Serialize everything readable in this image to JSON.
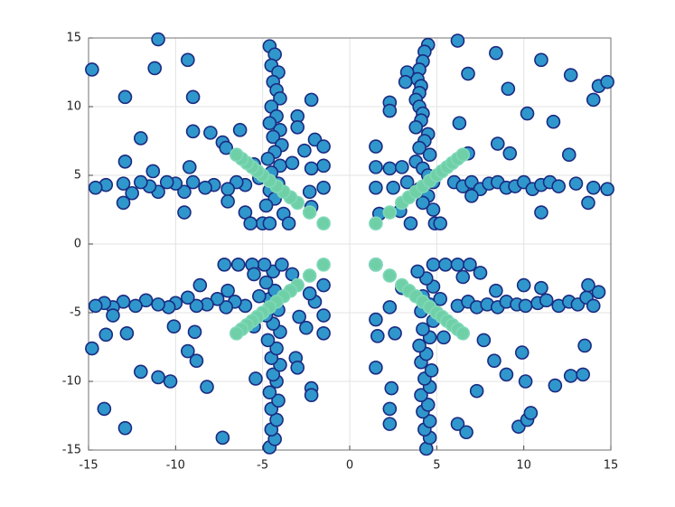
{
  "chart_data": {
    "type": "scatter",
    "xlim": [
      -15,
      15
    ],
    "ylim": [
      -15,
      15
    ],
    "xticks": [
      -15,
      -10,
      -5,
      0,
      5,
      10,
      15
    ],
    "yticks": [
      -15,
      -10,
      -5,
      0,
      5,
      10,
      15
    ],
    "grid": true,
    "series": [
      {
        "color": "#2f97cc",
        "edgecolor": "#1b2a80",
        "x": [
          4.5,
          4.3,
          4.2,
          4,
          3.9,
          4.1,
          4,
          3.8,
          4,
          4.2,
          4.1,
          3.8,
          4.5,
          4.3,
          4,
          4.6,
          3.8,
          4.2,
          4.5,
          4.8,
          4,
          4.5,
          4.2,
          4.8,
          4.9,
          5.2,
          6,
          6.5,
          7,
          7.5,
          8,
          8.5,
          9,
          9.5,
          10,
          10.5,
          11,
          11.5,
          12,
          13,
          14,
          14.8,
          13.7,
          11,
          7,
          6.8,
          6.2,
          8.4,
          11,
          12.7,
          14.3,
          14.8,
          14,
          9.1,
          6.8,
          10.2,
          11.7,
          8.5,
          9.2,
          12.6,
          6.3,
          3.3,
          3.2,
          2.3,
          2.3,
          1.5,
          1.5,
          2.3,
          3,
          1.5,
          2.5,
          3.3,
          1.7,
          2.9,
          3.5,
          -4.6,
          -4.3,
          -4.5,
          -4.1,
          -4.4,
          -4.2,
          -4,
          -4.5,
          -4.2,
          -4.6,
          -4,
          -4.4,
          -3.9,
          -4.3,
          -4.7,
          -4,
          -4.5,
          -4.1,
          -4.6,
          -4.3,
          -4.8,
          -5,
          -4.6,
          -3.8,
          -5.2,
          -5.5,
          -6,
          -6.5,
          -7,
          -7.8,
          -8.3,
          -9,
          -9.5,
          -10,
          -10.5,
          -11,
          -11.5,
          -12,
          -12.5,
          -13,
          -14,
          -14.6,
          -13,
          -9.5,
          -7,
          -6,
          -14.8,
          -11,
          -11.2,
          -9.3,
          -12.9,
          -9,
          -12,
          -9,
          -8,
          -7.3,
          -7.1,
          -6.3,
          -12.9,
          -9.2,
          -11.3,
          -2.2,
          -3,
          -3,
          -2,
          -1.5,
          -2.6,
          -1.5,
          -2.2,
          -3.3,
          -1.5,
          -2.3,
          -2.2,
          -3.5,
          -5.7,
          -4.6,
          -4.3,
          -4.5,
          -4.2,
          -4.5,
          -4.1,
          -4.6,
          -4.2,
          -4.4,
          -4,
          -4.5,
          -4.2,
          -4.7,
          -4,
          -4.4,
          -4.8,
          -4.1,
          -4.6,
          -4.3,
          -4.8,
          -4.4,
          -4.9,
          -5.6,
          -3.9,
          -5.2,
          -5.5,
          -6,
          -6.6,
          -7.1,
          -7.6,
          -8.2,
          -8.8,
          -9.3,
          -10,
          -10.4,
          -11,
          -11.7,
          -12.3,
          -13,
          -13.6,
          -14.1,
          -14.6,
          -13.6,
          -10.1,
          -8.6,
          -7,
          -14.8,
          -14.1,
          -12.9,
          -11,
          -10.3,
          -12,
          -12.8,
          -14,
          -9.3,
          -8.8,
          -8.2,
          -7.3,
          -8.9,
          -5.4,
          -3.1,
          -3,
          -2.2,
          -2.2,
          -1.5,
          -2.5,
          -1.5,
          -2.9,
          -2,
          -2.3,
          -1.5,
          -3.3,
          -7.2,
          -6.4,
          -5.5,
          4.4,
          4.6,
          4.3,
          4.6,
          4.2,
          4.5,
          4.1,
          4.6,
          4.3,
          4.7,
          4.1,
          4.4,
          4,
          4.6,
          4.2,
          4.8,
          4.1,
          4.6,
          4.2,
          4.8,
          4.4,
          4.8,
          5.5,
          3.9,
          5.2,
          5.4,
          6.2,
          6.8,
          7.3,
          7.9,
          8.5,
          9,
          9.6,
          10.1,
          10.8,
          11.3,
          12,
          12.6,
          13.1,
          13.6,
          14,
          14.3,
          13.7,
          11,
          10,
          8.4,
          6.2,
          6.9,
          7.5,
          6.5,
          7.7,
          8.3,
          9,
          9.9,
          7.3,
          6.2,
          6.7,
          9.7,
          10.2,
          10.4,
          10.1,
          11.8,
          12.7,
          13.4,
          13.5,
          2.3,
          2.3,
          2.4,
          1.5,
          1.6,
          2.6,
          1.5,
          2.3,
          3,
          1.5
        ],
        "values": [
          14.5,
          14,
          13.3,
          12.7,
          12,
          11.5,
          11,
          10.5,
          10,
          9.5,
          9,
          8.5,
          8,
          7.5,
          7,
          6.5,
          6,
          5.5,
          5,
          4.5,
          4,
          3.5,
          3,
          2.5,
          1.5,
          1.5,
          4.5,
          4.2,
          4.5,
          4,
          4.4,
          4.5,
          4.1,
          4.2,
          4.5,
          4,
          4.3,
          4.5,
          4.2,
          4.4,
          4.1,
          4,
          3,
          2.3,
          3.5,
          6.6,
          14.8,
          13.9,
          13.4,
          12.3,
          11.5,
          11.8,
          10.5,
          11.3,
          12.4,
          9.5,
          8.9,
          7.3,
          6.6,
          6.5,
          8.8,
          12.5,
          11.8,
          10.3,
          9.7,
          7.1,
          5.6,
          5.5,
          5.6,
          4.1,
          4.1,
          4.5,
          2.2,
          2.4,
          1.5,
          14.4,
          13.8,
          13,
          12.5,
          11.8,
          11.2,
          10.6,
          10,
          9.3,
          8.8,
          8.3,
          7.8,
          7.2,
          6.7,
          6.2,
          5.7,
          5.2,
          4.4,
          3.9,
          3.3,
          2.8,
          1.5,
          1.5,
          2.2,
          4.8,
          5.8,
          4.3,
          4.5,
          4,
          4.3,
          4.1,
          4.5,
          3.8,
          4.4,
          4.5,
          3.8,
          4.2,
          4.5,
          3.7,
          4.4,
          4.3,
          4.1,
          3,
          2.3,
          3.1,
          2.3,
          12.7,
          14.9,
          12.8,
          13.4,
          10.7,
          10.7,
          7.7,
          8.2,
          8.1,
          7.4,
          7,
          8.3,
          6,
          5.6,
          5.3,
          10.5,
          9.3,
          8.5,
          7.6,
          7.1,
          6.8,
          5.7,
          5.5,
          5.9,
          4.1,
          3.8,
          2.7,
          1.5,
          1.5,
          -14.8,
          -14.2,
          -13.5,
          -12.8,
          -12,
          -11.4,
          -10.8,
          -10,
          -9.5,
          -8.8,
          -8.3,
          -7.6,
          -7,
          -6.4,
          -5.8,
          -5.2,
          -4.8,
          -4,
          -3.4,
          -2.8,
          -2,
          -1.5,
          -1.5,
          -1.5,
          -3.8,
          -6,
          -4.5,
          -4.2,
          -4.6,
          -4,
          -4.4,
          -4.5,
          -3.9,
          -4.3,
          -4.6,
          -4.4,
          -4.1,
          -4.5,
          -4.2,
          -4.6,
          -4.3,
          -4.5,
          -5.2,
          -6,
          -3,
          -3.4,
          -7.6,
          -12,
          -13.4,
          -9.7,
          -10,
          -9.3,
          -6.5,
          -6.6,
          -7.8,
          -8.5,
          -10.4,
          -14.1,
          -6.4,
          -9.8,
          -8.3,
          -9,
          -10.5,
          -11,
          -6.5,
          -6.1,
          -5.2,
          -5.3,
          -4.2,
          -3.6,
          -3,
          -2.2,
          -1.5,
          -1.5,
          -2.2,
          -14.9,
          -14.1,
          -13.5,
          -12.9,
          -12.2,
          -11.7,
          -11,
          -10.4,
          -9.8,
          -9.2,
          -8.6,
          -8,
          -7.4,
          -6.8,
          -6.2,
          -5.6,
          -4.9,
          -4.4,
          -3.8,
          -3.1,
          -2.5,
          -1.5,
          -1.5,
          -2,
          -4,
          -6.8,
          -4.5,
          -4.2,
          -4.6,
          -4.4,
          -4.6,
          -4.2,
          -4.4,
          -4.5,
          -4.3,
          -4.1,
          -4.5,
          -4.2,
          -4.4,
          -3.9,
          -4.5,
          -3.5,
          -3,
          -3.2,
          -3,
          -3.4,
          -1.5,
          -1.5,
          -2.1,
          -2.4,
          -7,
          -8.5,
          -9.5,
          -7.9,
          -10.7,
          -13.1,
          -13.7,
          -13.3,
          -12.8,
          -12.3,
          -10,
          -10.3,
          -9.6,
          -9.5,
          -7.4,
          -13.1,
          -12,
          -10.5,
          -9,
          -6.7,
          -6.5,
          -5.5,
          -4.6,
          -3.2,
          -1.5
        ]
      },
      {
        "color": "#6fd0a8",
        "edgecolor": "#7fd8b8",
        "x": [
          1.5,
          2.3,
          3,
          3.4,
          3.8,
          4.2,
          4.6,
          5,
          5.3,
          5.6,
          5.9,
          6.2,
          6.5,
          -1.5,
          -2.3,
          -3,
          -3.4,
          -3.8,
          -4.2,
          -4.6,
          -5,
          -5.3,
          -5.6,
          -5.9,
          -6.2,
          -6.5,
          -1.5,
          -2.3,
          -3,
          -3.4,
          -3.8,
          -4.2,
          -4.6,
          -5,
          -5.3,
          -5.6,
          -5.9,
          -6.2,
          -6.5,
          1.5,
          2.3,
          3,
          3.4,
          3.8,
          4.2,
          4.6,
          5,
          5.3,
          5.6,
          5.9,
          6.2,
          6.5
        ],
        "values": [
          1.5,
          2.3,
          3,
          3.4,
          3.8,
          4.2,
          4.6,
          5,
          5.3,
          5.6,
          5.9,
          6.2,
          6.5,
          1.5,
          2.3,
          3,
          3.4,
          3.8,
          4.2,
          4.6,
          5,
          5.3,
          5.6,
          5.9,
          6.2,
          6.5,
          -1.5,
          -2.3,
          -3,
          -3.4,
          -3.8,
          -4.2,
          -4.6,
          -5,
          -5.3,
          -5.6,
          -5.9,
          -6.2,
          -6.5,
          -1.5,
          -2.3,
          -3,
          -3.4,
          -3.8,
          -4.2,
          -4.6,
          -5,
          -5.3,
          -5.6,
          -5.9,
          -6.2,
          -6.5
        ]
      }
    ]
  }
}
